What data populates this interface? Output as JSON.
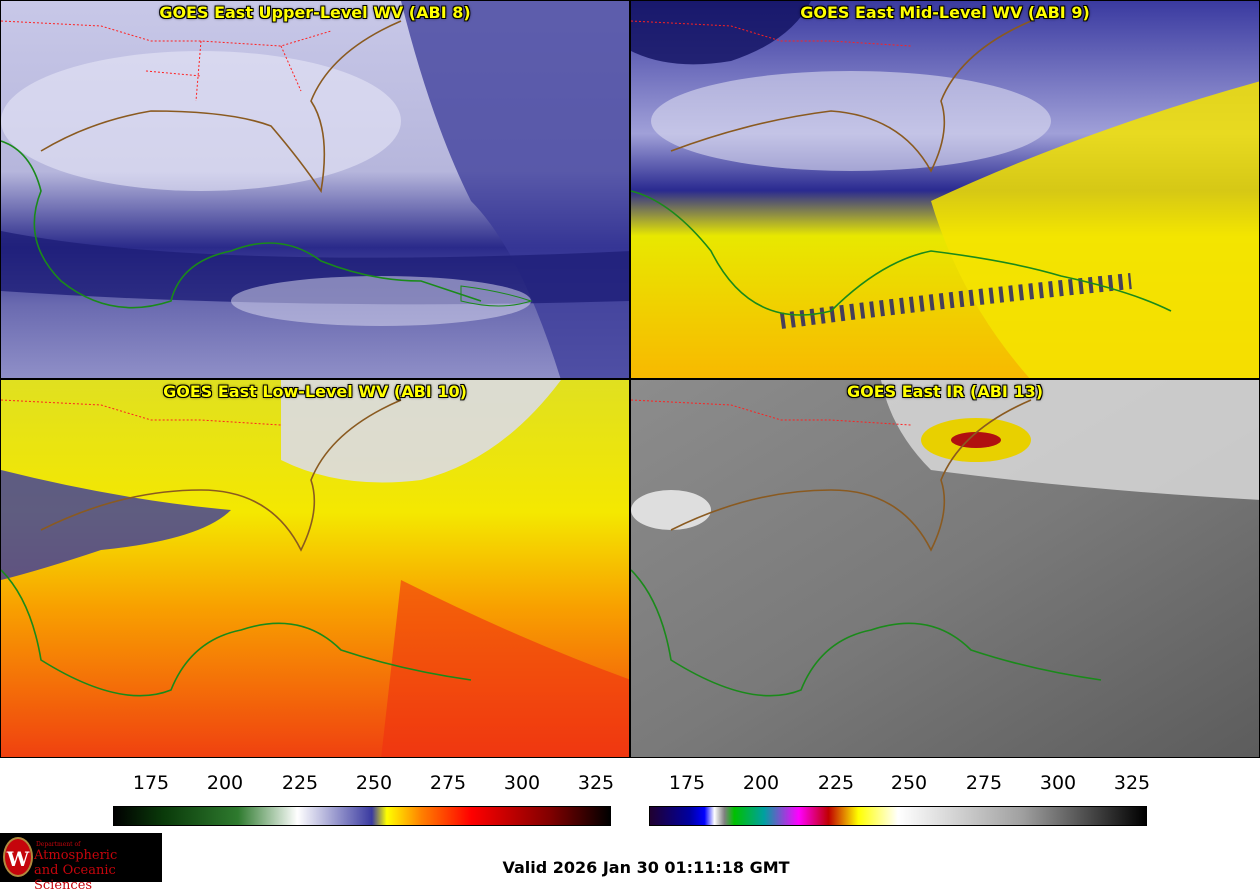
{
  "panels": [
    {
      "id": "abi8",
      "title": "GOES East Upper-Level WV (ABI 8)",
      "palette": "wv-blue"
    },
    {
      "id": "abi9",
      "title": "GOES East Mid-Level WV (ABI 9)",
      "palette": "wv-yellow"
    },
    {
      "id": "abi10",
      "title": "GOES East Low-Level WV (ABI 10)",
      "palette": "wv-orange"
    },
    {
      "id": "abi13",
      "title": "GOES East IR (ABI 13)",
      "palette": "ir-gray"
    }
  ],
  "colorbars": [
    {
      "ticks": [
        "175",
        "200",
        "225",
        "250",
        "275",
        "300",
        "325"
      ]
    },
    {
      "ticks": [
        "175",
        "200",
        "225",
        "250",
        "275",
        "300",
        "325"
      ]
    }
  ],
  "logo": {
    "line1": "Department of",
    "line2": "Atmospheric",
    "line3": "and Oceanic Sciences",
    "seal": "W"
  },
  "valid_time": "Valid 2026 Jan 30 01:11:18 GMT",
  "colors": {
    "title_text": "#ffff00",
    "state_border": "#ff2020",
    "coastline": "#1a8a1a"
  }
}
